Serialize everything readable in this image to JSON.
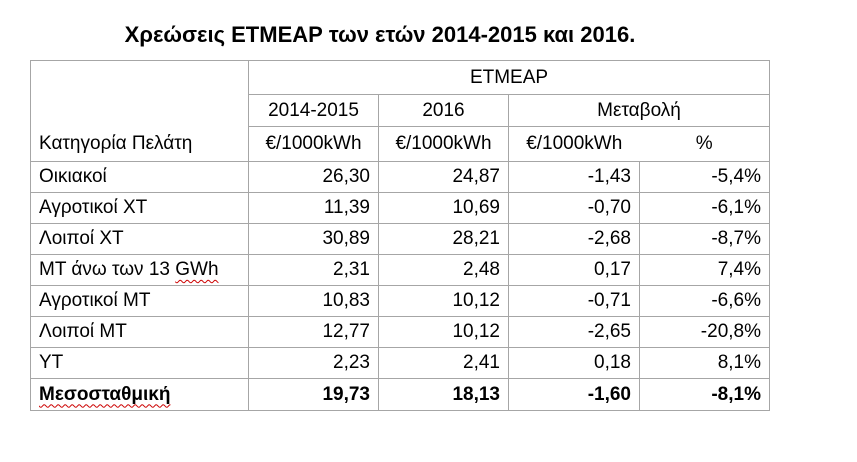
{
  "title": "Χρεώσεις ΕΤΜΕΑΡ των ετών 2014-2015 και 2016.",
  "table": {
    "group_header": "ΕΤΜΕΑΡ",
    "category_header": "Κατηγορία Πελάτη",
    "period_headers": [
      "2014-2015",
      "2016",
      "Μεταβολή"
    ],
    "unit_headers": [
      "€/1000kWh",
      "€/1000kWh",
      "€/1000kWh",
      "%"
    ],
    "rows": [
      {
        "category": "Οικιακοί",
        "y2014_2015": "26,30",
        "y2016": "24,87",
        "change": "-1,43",
        "pct": "-5,4%"
      },
      {
        "category": "Αγροτικοί ΧΤ",
        "y2014_2015": "11,39",
        "y2016": "10,69",
        "change": "-0,70",
        "pct": "-6,1%"
      },
      {
        "category": "Λοιποί ΧΤ",
        "y2014_2015": "30,89",
        "y2016": "28,21",
        "change": "-2,68",
        "pct": "-8,7%"
      },
      {
        "category_prefix": "ΜΤ άνω των 13 ",
        "category_unit": "GWh",
        "y2014_2015": "2,31",
        "y2016": "2,48",
        "change": "0,17",
        "pct": "7,4%"
      },
      {
        "category": "Αγροτικοί ΜΤ",
        "y2014_2015": "10,83",
        "y2016": "10,12",
        "change": "-0,71",
        "pct": "-6,6%"
      },
      {
        "category": "Λοιποί ΜΤ",
        "y2014_2015": "12,77",
        "y2016": "10,12",
        "change": "-2,65",
        "pct": "-20,8%"
      },
      {
        "category": "ΥΤ",
        "y2014_2015": "2,23",
        "y2016": "2,41",
        "change": "0,18",
        "pct": "8,1%"
      }
    ],
    "average": {
      "category": "Μεσοσταθμική",
      "y2014_2015": "19,73",
      "y2016": "18,13",
      "change": "-1,60",
      "pct": "-8,1%"
    }
  }
}
